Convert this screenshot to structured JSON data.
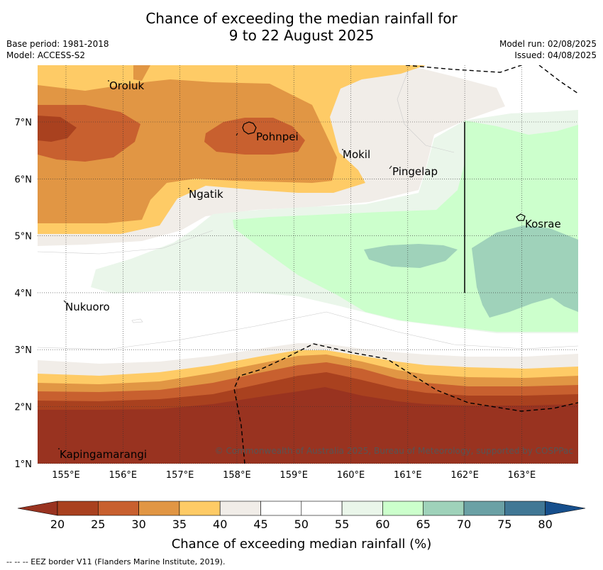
{
  "title": {
    "line1": "Chance of exceeding the median rainfall for",
    "line2": "9 to 22 August 2025"
  },
  "meta": {
    "base_period": "Base period: 1981-2018",
    "model": "Model: ACCESS-S2",
    "model_run": "Model run: 02/08/2025",
    "issued": "Issued: 04/08/2025"
  },
  "map": {
    "lon_ticks": [
      "155°E",
      "156°E",
      "157°E",
      "158°E",
      "159°E",
      "160°E",
      "161°E",
      "162°E",
      "163°E"
    ],
    "lat_ticks": [
      "7°N",
      "6°N",
      "5°N",
      "4°N",
      "3°N",
      "2°N",
      "1°N"
    ],
    "places": [
      "Oroluk",
      "Pohnpei",
      "Mokil",
      "Pingelap",
      "Ngatik",
      "Kosrae",
      "Nukuoro",
      "Kapingamarangi"
    ],
    "copyright": "© Commonwealth of Australia 2025, Bureau of Meteorology, supported by COSPPac"
  },
  "colorbar": {
    "ticks": [
      "20",
      "25",
      "30",
      "35",
      "40",
      "45",
      "50",
      "55",
      "60",
      "65",
      "70",
      "75",
      "80"
    ],
    "colors": [
      "#a9411f",
      "#c8602f",
      "#e19644",
      "#fecb66",
      "#f1ede8",
      "#ffffff",
      "#ffffff",
      "#eaf6ea",
      "#ccffcc",
      "#9fd2ba",
      "#6ba1a5",
      "#417895"
    ],
    "under_color": "#993320",
    "over_color": "#164f8c",
    "label": "Chance of exceeding median rainfall (%)"
  },
  "footnote": "--  --  -- EEZ border V11 (Flanders Marine Institute, 2019)."
}
